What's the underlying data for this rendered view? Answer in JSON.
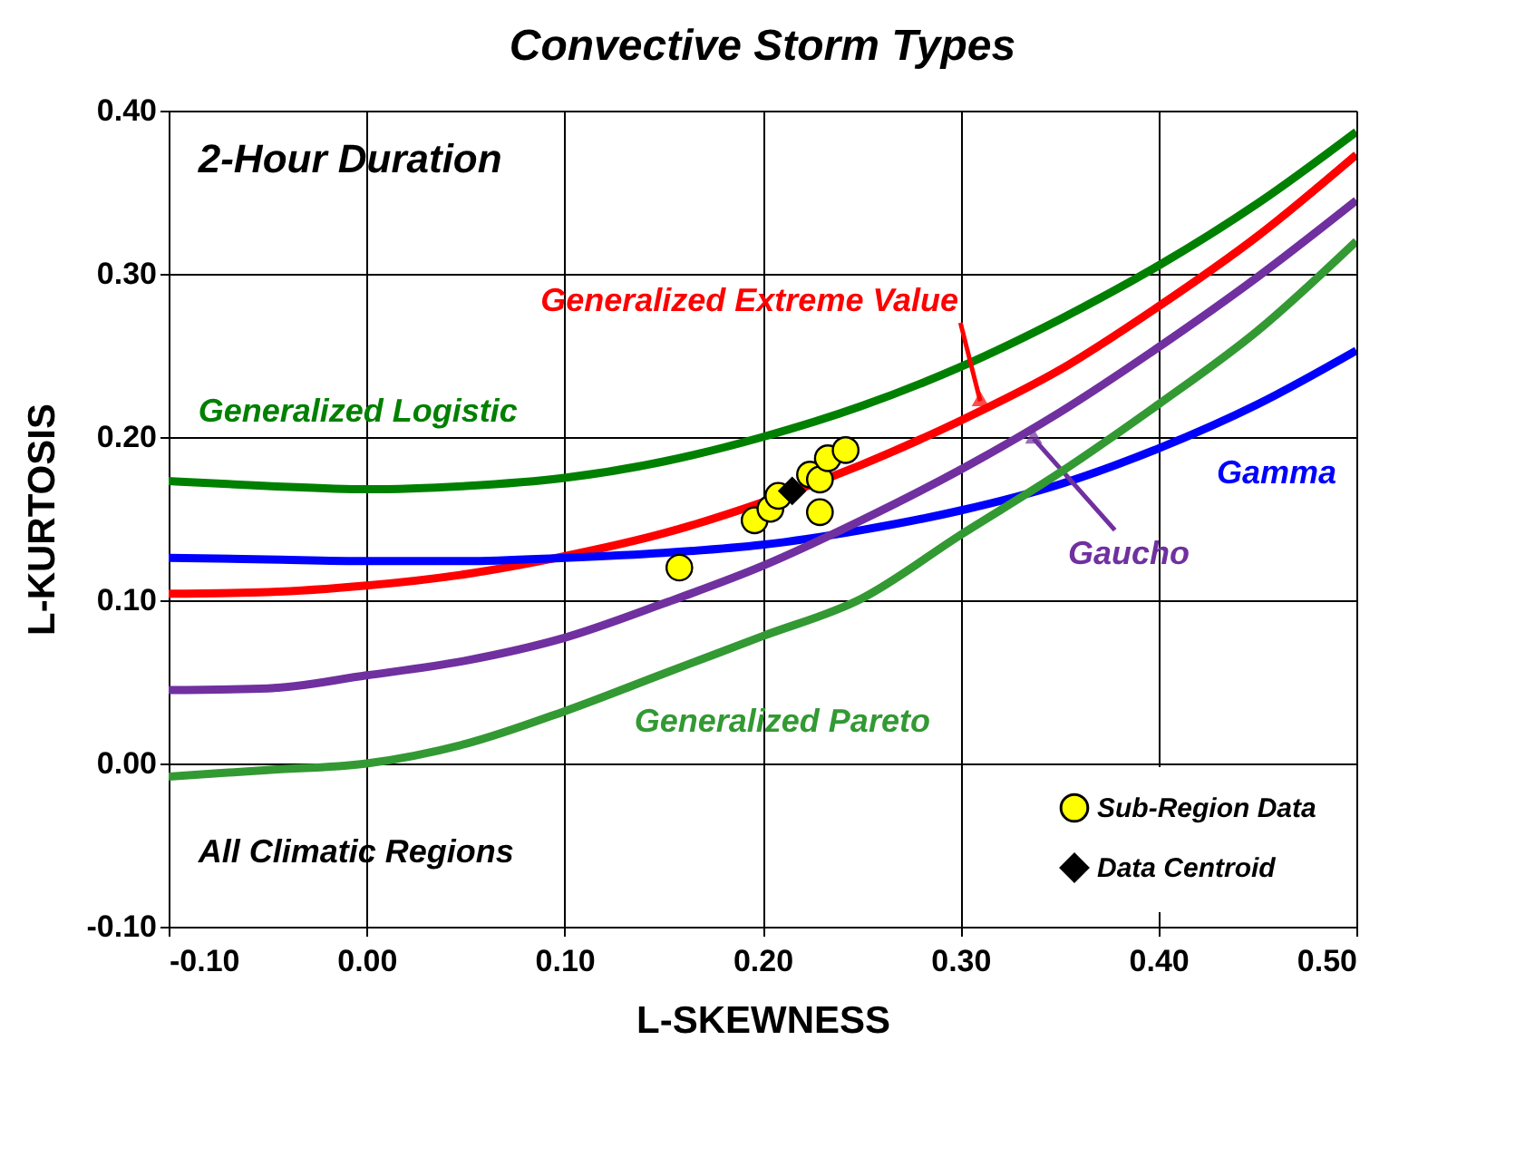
{
  "chart_data": {
    "type": "line",
    "title": "Convective Storm Types",
    "xlabel": "L-SKEWNESS",
    "ylabel": "L-KURTOSIS",
    "annotations": [
      "2-Hour Duration",
      "All Climatic Regions"
    ],
    "xlim": [
      -0.1,
      0.5
    ],
    "ylim": [
      -0.1,
      0.4
    ],
    "xticks": [
      {
        "value": -0.1,
        "label": "-0.10"
      },
      {
        "value": 0,
        "label": "0.00"
      },
      {
        "value": 0.1,
        "label": "0.10"
      },
      {
        "value": 0.2,
        "label": "0.20"
      },
      {
        "value": 0.3,
        "label": "0.30"
      },
      {
        "value": 0.4,
        "label": "0.40"
      },
      {
        "value": 0.5,
        "label": "0.50"
      }
    ],
    "yticks": [
      {
        "value": -0.1,
        "label": "-0.10"
      },
      {
        "value": 0,
        "label": "0.00"
      },
      {
        "value": 0.1,
        "label": "0.10"
      },
      {
        "value": 0.2,
        "label": "0.20"
      },
      {
        "value": 0.3,
        "label": "0.30"
      },
      {
        "value": 0.4,
        "label": "0.40"
      }
    ],
    "grid": true,
    "legend": "bottom right",
    "series": [
      {
        "name": "Generalized Logistic",
        "type": "line",
        "color": "#008000",
        "x": [
          -0.1,
          -0.05,
          0,
          0.05,
          0.1,
          0.15,
          0.2,
          0.25,
          0.3,
          0.35,
          0.4,
          0.45,
          0.5
        ],
        "values": [
          0.173,
          0.17,
          0.168,
          0.17,
          0.175,
          0.185,
          0.2,
          0.219,
          0.243,
          0.272,
          0.305,
          0.343,
          0.387
        ]
      },
      {
        "name": "Generalized Extreme Value",
        "type": "line",
        "color": "#ff0000",
        "x": [
          -0.1,
          -0.05,
          0,
          0.05,
          0.1,
          0.15,
          0.2,
          0.25,
          0.3,
          0.35,
          0.4,
          0.45,
          0.5
        ],
        "values": [
          0.104,
          0.105,
          0.109,
          0.116,
          0.127,
          0.141,
          0.16,
          0.183,
          0.21,
          0.241,
          0.28,
          0.323,
          0.373
        ]
      },
      {
        "name": "Gamma",
        "type": "line",
        "color": "#0000ff",
        "x": [
          -0.1,
          -0.05,
          0,
          0.05,
          0.1,
          0.15,
          0.2,
          0.25,
          0.3,
          0.35,
          0.4,
          0.45,
          0.5
        ],
        "values": [
          0.126,
          0.125,
          0.124,
          0.124,
          0.126,
          0.129,
          0.134,
          0.143,
          0.155,
          0.171,
          0.193,
          0.22,
          0.253
        ]
      },
      {
        "name": "Gaucho",
        "type": "line",
        "color": "#7030a0",
        "x": [
          -0.1,
          -0.05,
          0,
          0.05,
          0.1,
          0.15,
          0.2,
          0.25,
          0.3,
          0.35,
          0.4,
          0.45,
          0.5
        ],
        "values": [
          0.045,
          0.046,
          0.054,
          0.063,
          0.077,
          0.098,
          0.121,
          0.149,
          0.18,
          0.215,
          0.255,
          0.298,
          0.345
        ]
      },
      {
        "name": "Generalized Pareto",
        "type": "line",
        "color": "#339933",
        "x": [
          -0.1,
          -0.05,
          0,
          0.05,
          0.1,
          0.15,
          0.2,
          0.25,
          0.3,
          0.35,
          0.4,
          0.45,
          0.5
        ],
        "values": [
          -0.008,
          -0.004,
          0.0,
          0.012,
          0.032,
          0.055,
          0.078,
          0.101,
          0.14,
          0.178,
          0.22,
          0.265,
          0.32
        ]
      },
      {
        "name": "Sub-Region Data",
        "type": "scatter",
        "marker": "circle",
        "color": "#ffff00",
        "x": [
          0.158,
          0.196,
          0.204,
          0.208,
          0.229,
          0.224,
          0.229,
          0.233,
          0.242
        ],
        "values": [
          0.12,
          0.149,
          0.156,
          0.164,
          0.154,
          0.177,
          0.174,
          0.187,
          0.192
        ]
      },
      {
        "name": "Data Centroid",
        "type": "scatter",
        "marker": "diamond",
        "color": "#000000",
        "x": [
          0.215
        ],
        "values": [
          0.167
        ]
      }
    ]
  }
}
